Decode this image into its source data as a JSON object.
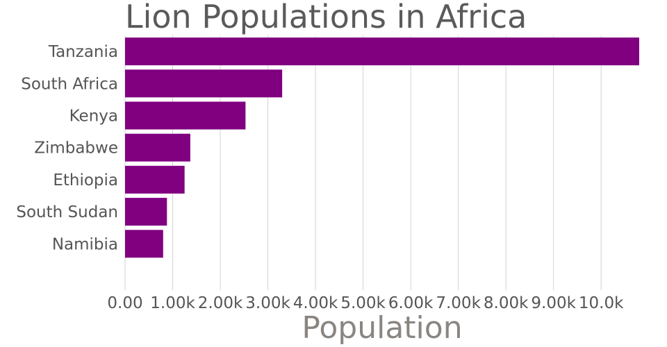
{
  "chart_data": {
    "type": "bar",
    "orientation": "horizontal",
    "title": "Lion Populations in Africa",
    "xlabel": "Population",
    "ylabel": "",
    "categories": [
      "Tanzania",
      "South Africa",
      "Kenya",
      "Zimbabwe",
      "Ethiopia",
      "South Sudan",
      "Namibia"
    ],
    "values": [
      10800,
      3300,
      2530,
      1370,
      1250,
      880,
      800
    ],
    "xlim": [
      0,
      10800
    ],
    "xticks": [
      0,
      1000,
      2000,
      3000,
      4000,
      5000,
      6000,
      7000,
      8000,
      9000,
      10000
    ],
    "xtick_labels": [
      "0.00",
      "1.00k",
      "2.00k",
      "3.00k",
      "4.00k",
      "5.00k",
      "6.00k",
      "7.00k",
      "8.00k",
      "9.00k",
      "10.0k"
    ],
    "bar_color": "#800080",
    "grid": "vertical",
    "legend": "none"
  }
}
